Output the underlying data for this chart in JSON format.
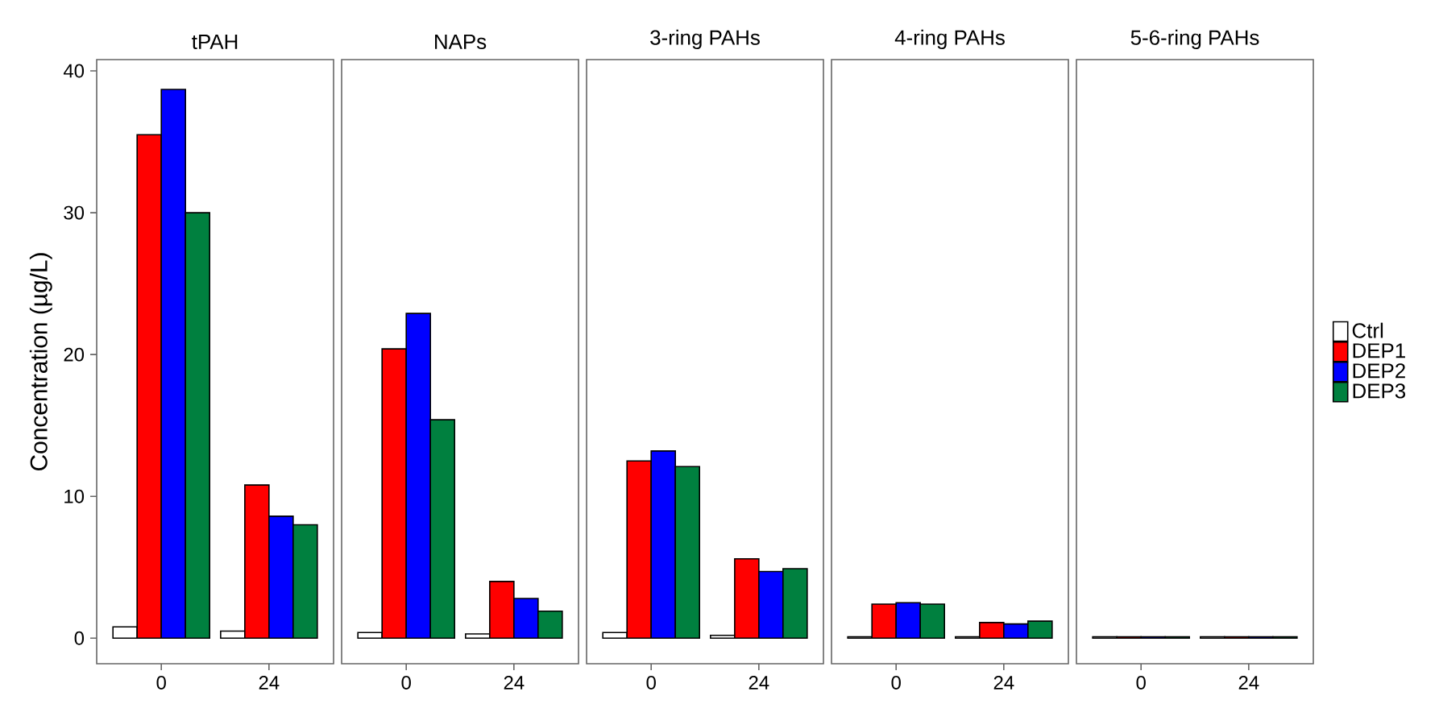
{
  "chart_data": [
    {
      "type": "bar",
      "title": "tPAH",
      "ylabel": "Concentration (µg/L)",
      "categories": [
        "0",
        "24"
      ],
      "ylim": [
        -1.8,
        40.8
      ],
      "yticks": [
        0,
        10,
        20,
        30,
        40
      ],
      "legend": false,
      "series": [
        {
          "color": "#ffffff",
          "values": [
            0.8,
            0.5
          ]
        },
        {
          "color": "#ff0000",
          "values": [
            35.5,
            10.8
          ]
        },
        {
          "color": "#0000ff",
          "values": [
            38.7,
            8.6
          ]
        },
        {
          "color": "#00803f",
          "values": [
            30.0,
            8.0
          ]
        }
      ]
    },
    {
      "type": "bar",
      "title": "NAPs",
      "categories": [
        "0",
        "24"
      ],
      "ylim": [
        -1.8,
        40.8
      ],
      "tick_labels": "x",
      "legend": false,
      "series": [
        {
          "color": "#ffffff",
          "values": [
            0.4,
            0.3
          ]
        },
        {
          "color": "#ff0000",
          "values": [
            20.4,
            4.0
          ]
        },
        {
          "color": "#0000ff",
          "values": [
            22.9,
            2.8
          ]
        },
        {
          "color": "#00803f",
          "values": [
            15.4,
            1.9
          ]
        }
      ]
    },
    {
      "type": "bar",
      "title": "3-ring PAHs",
      "categories": [
        "0",
        "24"
      ],
      "ylim": [
        -1.8,
        40.8
      ],
      "tick_labels": "x",
      "legend": false,
      "series": [
        {
          "color": "#ffffff",
          "values": [
            0.4,
            0.2
          ]
        },
        {
          "color": "#ff0000",
          "values": [
            12.5,
            5.6
          ]
        },
        {
          "color": "#0000ff",
          "values": [
            13.2,
            4.7
          ]
        },
        {
          "color": "#00803f",
          "values": [
            12.1,
            4.9
          ]
        }
      ]
    },
    {
      "type": "bar",
      "title": "4-ring PAHs",
      "categories": [
        "0",
        "24"
      ],
      "ylim": [
        -1.8,
        40.8
      ],
      "tick_labels": "x",
      "legend": false,
      "series": [
        {
          "color": "#ffffff",
          "values": [
            0.1,
            0.1
          ]
        },
        {
          "color": "#ff0000",
          "values": [
            2.4,
            1.1
          ]
        },
        {
          "color": "#0000ff",
          "values": [
            2.5,
            1.0
          ]
        },
        {
          "color": "#00803f",
          "values": [
            2.4,
            1.2
          ]
        }
      ]
    },
    {
      "type": "bar",
      "title": "5-6-ring PAHs",
      "categories": [
        "0",
        "24"
      ],
      "ylim": [
        -1.8,
        40.8
      ],
      "tick_labels": "x",
      "legend": "right",
      "series": [
        {
          "name": "Ctrl",
          "color": "#ffffff",
          "values": [
            0.1,
            0.1
          ]
        },
        {
          "name": "DEP1",
          "color": "#ff0000",
          "values": [
            0.1,
            0.1
          ]
        },
        {
          "name": "DEP2",
          "color": "#0000ff",
          "values": [
            0.1,
            0.1
          ]
        },
        {
          "name": "DEP3",
          "color": "#00803f",
          "values": [
            0.1,
            0.1
          ]
        }
      ]
    }
  ]
}
